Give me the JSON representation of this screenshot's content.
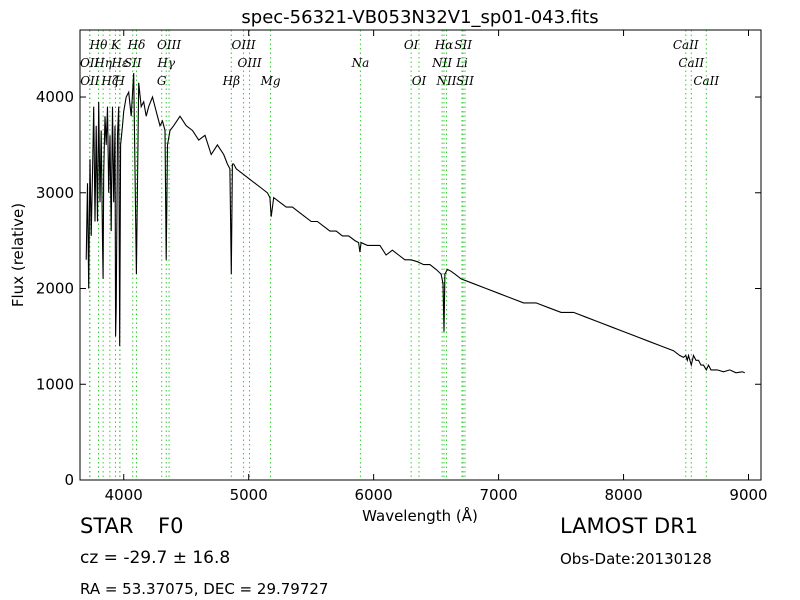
{
  "chart_data": {
    "type": "line",
    "title": "spec-56321-VB053N32V1_sp01-043.fits",
    "xlabel": "Wavelength (Å)",
    "ylabel": "Flux (relative)",
    "xlim": [
      3650,
      9100
    ],
    "ylim": [
      0,
      4700
    ],
    "xticks": [
      4000,
      5000,
      6000,
      7000,
      8000,
      9000
    ],
    "yticks": [
      0,
      1000,
      2000,
      3000,
      4000
    ],
    "grid": false,
    "legend": "none",
    "line_color": "#000000",
    "marker_color": "#33cc33",
    "series": [
      {
        "x": [
          3700,
          3710,
          3720,
          3730,
          3740,
          3750,
          3760,
          3770,
          3780,
          3790,
          3800,
          3810,
          3820,
          3830,
          3835,
          3840,
          3850,
          3860,
          3870,
          3880,
          3890,
          3900,
          3910,
          3920,
          3930,
          3935,
          3940,
          3950,
          3960,
          3968,
          3975,
          3990,
          4000,
          4020,
          4040,
          4060,
          4080,
          4101,
          4120,
          4140,
          4160,
          4180,
          4200,
          4230,
          4260,
          4290,
          4310,
          4330,
          4340,
          4350,
          4370,
          4400,
          4450,
          4500,
          4550,
          4600,
          4650,
          4700,
          4750,
          4800,
          4830,
          4850,
          4861,
          4870,
          4880,
          4900,
          4950,
          5000,
          5050,
          5100,
          5150,
          5170,
          5180,
          5200,
          5250,
          5300,
          5350,
          5400,
          5450,
          5500,
          5550,
          5600,
          5650,
          5700,
          5750,
          5800,
          5850,
          5880,
          5890,
          5900,
          5950,
          6000,
          6050,
          6100,
          6150,
          6200,
          6250,
          6300,
          6350,
          6400,
          6450,
          6500,
          6540,
          6555,
          6563,
          6570,
          6590,
          6620,
          6650,
          6700,
          6800,
          6900,
          7000,
          7100,
          7200,
          7300,
          7400,
          7500,
          7600,
          7700,
          7800,
          7900,
          8000,
          8100,
          8200,
          8300,
          8400,
          8450,
          8480,
          8498,
          8510,
          8520,
          8542,
          8560,
          8580,
          8600,
          8620,
          8640,
          8662,
          8680,
          8700,
          8750,
          8800,
          8850,
          8900,
          8950,
          8970
        ],
        "y": [
          2300,
          3100,
          2000,
          3350,
          2550,
          3200,
          3900,
          2700,
          3700,
          2700,
          3950,
          2900,
          3650,
          2500,
          2100,
          3200,
          3800,
          3500,
          3900,
          3000,
          3600,
          2600,
          3900,
          2900,
          3700,
          1500,
          1800,
          3600,
          3900,
          1400,
          3500,
          3700,
          3850,
          4000,
          4050,
          3800,
          4250,
          2150,
          4150,
          3900,
          3950,
          3800,
          3900,
          4000,
          3850,
          3700,
          3750,
          3650,
          2300,
          3500,
          3650,
          3700,
          3800,
          3700,
          3650,
          3550,
          3600,
          3400,
          3500,
          3400,
          3300,
          3250,
          2150,
          3300,
          3300,
          3250,
          3200,
          3150,
          3100,
          3050,
          3000,
          2950,
          2750,
          2950,
          2900,
          2850,
          2850,
          2800,
          2750,
          2700,
          2700,
          2650,
          2600,
          2600,
          2550,
          2550,
          2500,
          2480,
          2380,
          2480,
          2450,
          2450,
          2450,
          2350,
          2400,
          2350,
          2300,
          2300,
          2280,
          2250,
          2250,
          2200,
          2150,
          2050,
          1550,
          2150,
          2200,
          2180,
          2150,
          2100,
          2050,
          2000,
          1950,
          1900,
          1850,
          1850,
          1800,
          1750,
          1750,
          1700,
          1650,
          1600,
          1550,
          1500,
          1450,
          1400,
          1350,
          1300,
          1280,
          1300,
          1250,
          1300,
          1200,
          1300,
          1250,
          1250,
          1200,
          1200,
          1150,
          1200,
          1150,
          1150,
          1130,
          1150,
          1120,
          1130,
          1120
        ]
      }
    ],
    "lines": [
      {
        "label": "Hθ",
        "x": 3798,
        "row": 0
      },
      {
        "label": "OII",
        "x": 3727,
        "row": 1
      },
      {
        "label": "OII",
        "x": 3729,
        "row": 2
      },
      {
        "label": "Hη",
        "x": 3835,
        "row": 1
      },
      {
        "label": "Hζ",
        "x": 3889,
        "row": 2
      },
      {
        "label": "K",
        "x": 3934,
        "row": 0
      },
      {
        "label": "Hε",
        "x": 3970,
        "row": 1
      },
      {
        "label": "H",
        "x": 3968,
        "row": 2
      },
      {
        "label": "SII",
        "x": 4072,
        "row": 1
      },
      {
        "label": "Hδ",
        "x": 4102,
        "row": 0
      },
      {
        "label": "OIII",
        "x": 4363,
        "row": 0
      },
      {
        "label": "Hγ",
        "x": 4340,
        "row": 1
      },
      {
        "label": "G",
        "x": 4304,
        "row": 2
      },
      {
        "label": "OIII",
        "x": 4959,
        "row": 0
      },
      {
        "label": "OIII",
        "x": 5007,
        "row": 1
      },
      {
        "label": "Hβ",
        "x": 4861,
        "row": 2
      },
      {
        "label": "Mg",
        "x": 5175,
        "row": 2
      },
      {
        "label": "Na",
        "x": 5894,
        "row": 1
      },
      {
        "label": "OI",
        "x": 6300,
        "row": 0
      },
      {
        "label": "OI",
        "x": 6363,
        "row": 2
      },
      {
        "label": "Hα",
        "x": 6563,
        "row": 0
      },
      {
        "label": "NII",
        "x": 6548,
        "row": 1
      },
      {
        "label": "NII",
        "x": 6583,
        "row": 2
      },
      {
        "label": "SII",
        "x": 6716,
        "row": 0
      },
      {
        "label": "Li",
        "x": 6707,
        "row": 1
      },
      {
        "label": "SII",
        "x": 6731,
        "row": 2
      },
      {
        "label": "CaII",
        "x": 8498,
        "row": 0
      },
      {
        "label": "CaII",
        "x": 8542,
        "row": 1
      },
      {
        "label": "CaII",
        "x": 8662,
        "row": 2
      }
    ]
  },
  "info": {
    "class_label": "STAR",
    "subclass_label": "F0",
    "survey": "LAMOST DR1",
    "cz": "cz = -29.7 ± 16.8",
    "obs_date": "Obs-Date:20130128",
    "coords": "RA = 53.37075, DEC = 29.79727"
  }
}
